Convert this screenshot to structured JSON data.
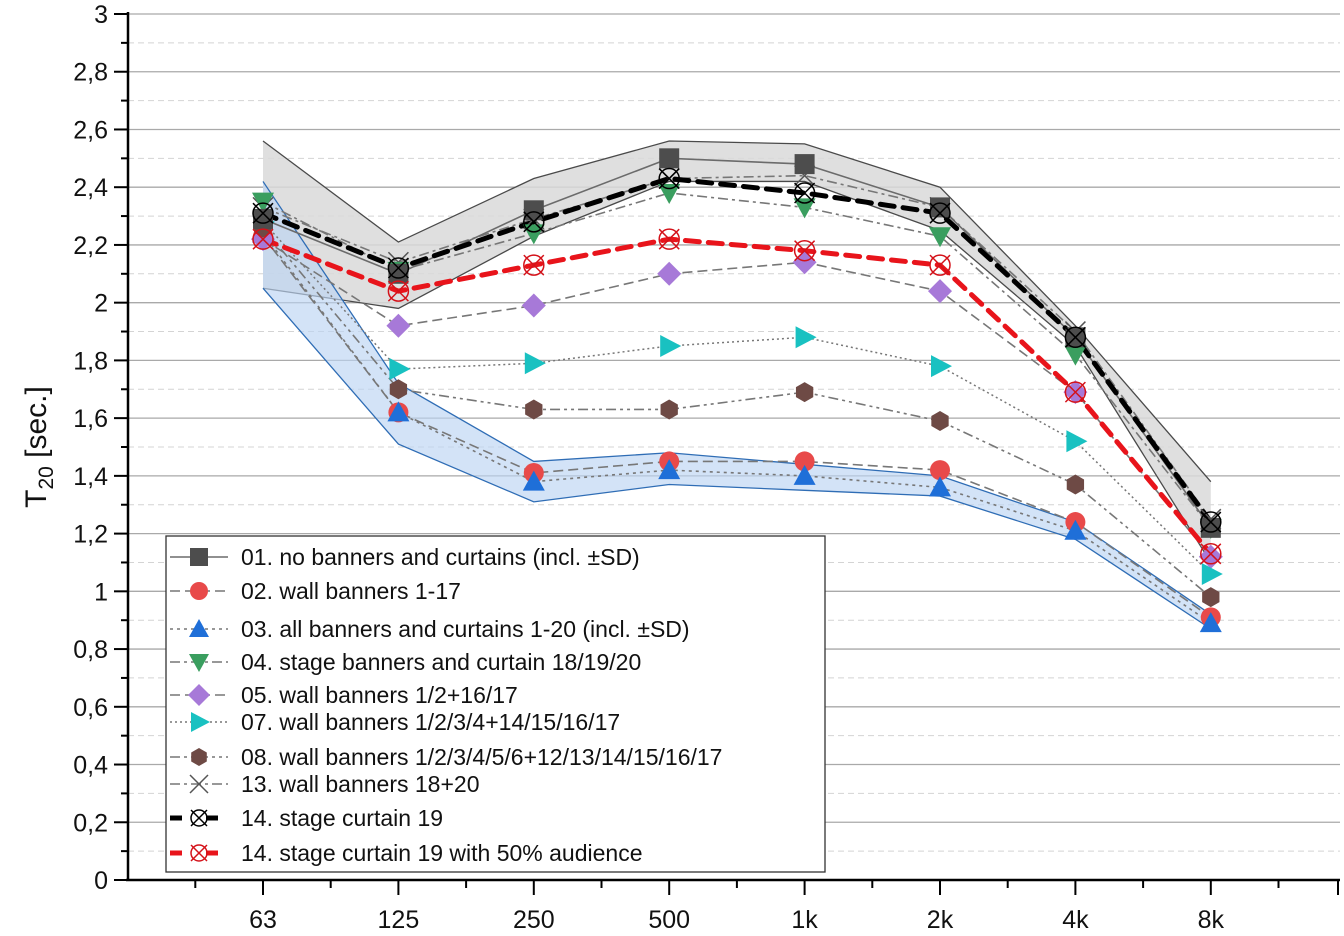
{
  "chart_data": {
    "type": "line",
    "title": "",
    "xlabel": "",
    "ylabel": "T",
    "ylabel_subscript": "20",
    "ylabel_unit": " [sec.]",
    "x_scale": "categorical (octave bands)",
    "categories": [
      "63",
      "125",
      "250",
      "500",
      "1k",
      "2k",
      "4k",
      "8k"
    ],
    "ylim": [
      0,
      3
    ],
    "yticks": [
      0,
      0.2,
      0.4,
      0.6,
      0.8,
      1,
      1.2,
      1.4,
      1.6,
      1.8,
      2,
      2.2,
      2.4,
      2.6,
      2.8,
      3
    ],
    "ytick_labels": [
      "0",
      "0,2",
      "0,4",
      "0,6",
      "0,8",
      "1",
      "1,2",
      "1,4",
      "1,6",
      "1,8",
      "2",
      "2,2",
      "2,4",
      "2,6",
      "2,8",
      "3"
    ],
    "grid": "major solid, minor dashed (horizontal)",
    "legend_position": "bottom-left",
    "series": [
      {
        "id": "s01",
        "name": "01. no banners and curtains (incl. ±SD)",
        "marker": "square",
        "color": "#4d4d4d",
        "line": "solid",
        "values": [
          2.29,
          2.1,
          2.32,
          2.5,
          2.48,
          2.33,
          1.88,
          1.22
        ],
        "band_upper": [
          2.56,
          2.21,
          2.43,
          2.56,
          2.55,
          2.4,
          1.92,
          1.38
        ],
        "band_lower": [
          2.05,
          1.98,
          2.23,
          2.42,
          2.42,
          2.25,
          1.85,
          1.1
        ],
        "band_color": "#d9d9d9"
      },
      {
        "id": "s02",
        "name": "02. wall banners 1-17",
        "marker": "circle",
        "color": "#e84a4a",
        "line": "dash",
        "values": [
          2.23,
          1.62,
          1.41,
          1.45,
          1.45,
          1.42,
          1.24,
          0.91
        ]
      },
      {
        "id": "s03",
        "name": "03. all banners and curtains 1-20 (incl. ±SD)",
        "marker": "triangle-up",
        "color": "#1f6fd8",
        "line": "dot",
        "values": [
          2.24,
          1.62,
          1.38,
          1.42,
          1.4,
          1.36,
          1.21,
          0.89
        ],
        "band_upper": [
          2.42,
          1.72,
          1.45,
          1.48,
          1.44,
          1.4,
          1.24,
          0.92
        ],
        "band_lower": [
          2.05,
          1.51,
          1.31,
          1.37,
          1.35,
          1.33,
          1.18,
          0.87
        ],
        "band_color": "#bcd4f2"
      },
      {
        "id": "s04",
        "name": "04. stage banners and curtain 18/19/20",
        "marker": "triangle-down",
        "color": "#3a9e5f",
        "line": "dashdot",
        "values": [
          2.35,
          2.11,
          2.24,
          2.38,
          2.33,
          2.23,
          1.82,
          1.22
        ]
      },
      {
        "id": "s05",
        "name": "05. wall banners 1/2+16/17",
        "marker": "diamond",
        "color": "#a779d8",
        "line": "dash",
        "values": [
          2.22,
          1.92,
          1.99,
          2.1,
          2.14,
          2.04,
          1.69,
          1.12
        ]
      },
      {
        "id": "s07",
        "name": "07. wall banners 1/2/3/4+14/15/16/17",
        "marker": "triangle-right",
        "color": "#19c1c1",
        "line": "shortdot",
        "values": [
          2.28,
          1.77,
          1.79,
          1.85,
          1.88,
          1.78,
          1.52,
          1.06
        ]
      },
      {
        "id": "s08",
        "name": "08. wall banners 1/2/3/4/5/6+12/13/14/15/16/17",
        "marker": "hexagon",
        "color": "#6e4a45",
        "line": "dashdotdot",
        "values": [
          2.26,
          1.7,
          1.63,
          1.63,
          1.69,
          1.59,
          1.37,
          0.98
        ]
      },
      {
        "id": "s13",
        "name": "13. wall banners 18+20",
        "marker": "x",
        "color": "#555555",
        "line": "dashdot",
        "values": [
          2.33,
          2.14,
          2.29,
          2.43,
          2.44,
          2.33,
          1.9,
          1.25
        ]
      },
      {
        "id": "s14",
        "name": "14. stage curtain 19",
        "marker": "circle-x",
        "color": "#000000",
        "line": "bold-dash",
        "values": [
          2.31,
          2.12,
          2.28,
          2.43,
          2.38,
          2.31,
          1.88,
          1.24
        ]
      },
      {
        "id": "s14a",
        "name": "14. stage curtain 19 with 50% audience",
        "marker": "circle-x",
        "color": "#e8141b",
        "line": "bold-dash",
        "values": [
          2.22,
          2.04,
          2.13,
          2.22,
          2.18,
          2.13,
          1.69,
          1.13
        ]
      }
    ]
  }
}
